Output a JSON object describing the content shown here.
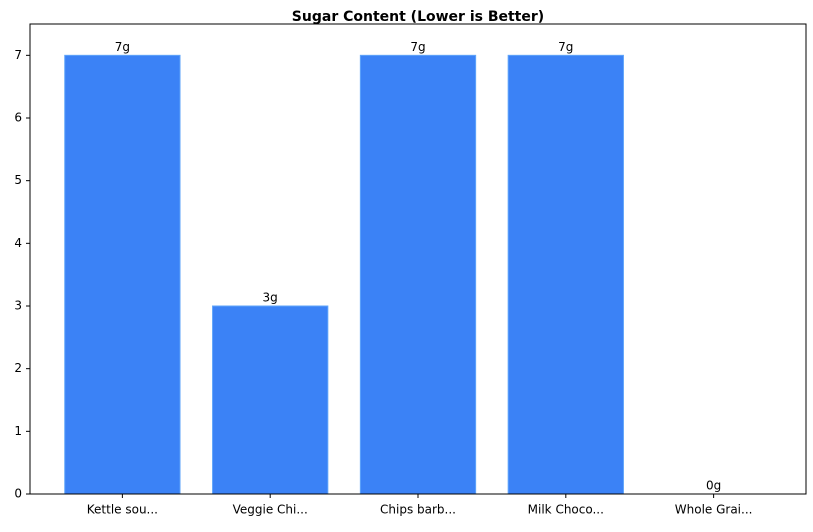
{
  "chart_data": {
    "type": "bar",
    "title": "Sugar Content (Lower is Better)",
    "categories": [
      "Kettle sou...",
      "Veggie Chi...",
      "Chips barb...",
      "Milk Choco...",
      "Whole Grai..."
    ],
    "values": [
      7,
      3,
      7,
      7,
      0
    ],
    "value_labels": [
      "7g",
      "3g",
      "7g",
      "7g",
      "0g"
    ],
    "color": "#3b82f6",
    "ylim": [
      0,
      7.5
    ],
    "yticks": [
      0,
      1,
      2,
      3,
      4,
      5,
      6,
      7
    ],
    "grid": false
  }
}
